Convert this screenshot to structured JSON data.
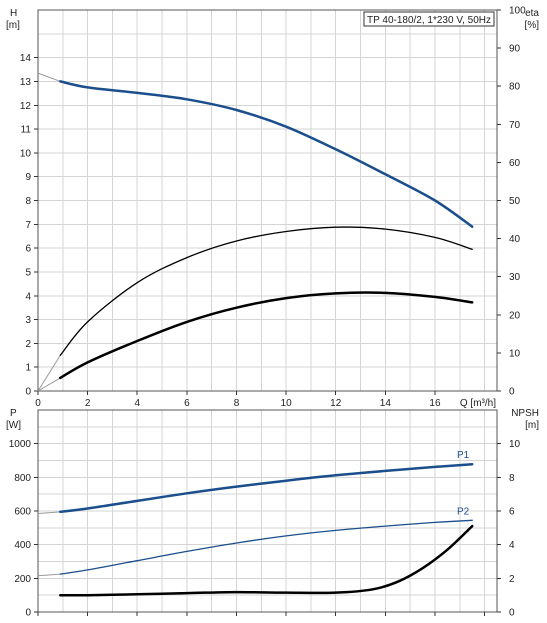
{
  "chart_data": [
    {
      "type": "line",
      "title": "TP 40-180/2, 1*230 V, 50Hz",
      "xlabel": "Q [m³/h]",
      "ylabel_left": [
        "H",
        "[m]"
      ],
      "ylabel_right": [
        "eta",
        "[%]"
      ],
      "xlim": [
        0,
        18.5
      ],
      "ylim_left": [
        0,
        16
      ],
      "ylim_right": [
        0,
        100
      ],
      "x_ticks": [
        "0",
        "2",
        "4",
        "6",
        "8",
        "10",
        "12",
        "14",
        "16"
      ],
      "y_ticks_left": [
        "0",
        "1",
        "2",
        "3",
        "4",
        "5",
        "6",
        "7",
        "8",
        "9",
        "10",
        "11",
        "12",
        "13",
        "14"
      ],
      "y_ticks_right": [
        "0",
        "10",
        "20",
        "30",
        "40",
        "50",
        "60",
        "70",
        "80",
        "90",
        "100"
      ],
      "grid": true,
      "series": [
        {
          "axis": "left",
          "color": "#1a4e8c",
          "width": 2.5,
          "x": [
            0.9,
            2,
            4,
            6,
            8,
            10,
            12,
            14,
            16,
            17.5
          ],
          "y": [
            13.0,
            12.75,
            12.52,
            12.25,
            11.8,
            11.1,
            10.15,
            9.1,
            8.0,
            6.9
          ],
          "extension": {
            "x": [
              0,
              0.9
            ],
            "y": [
              13.35,
              13.0
            ]
          }
        },
        {
          "axis": "left",
          "color": "#000000",
          "width": 1.3,
          "x": [
            0.9,
            2,
            4,
            6,
            8,
            10,
            12,
            14,
            16,
            17.5
          ],
          "y": [
            1.5,
            2.9,
            4.55,
            5.6,
            6.3,
            6.7,
            6.88,
            6.8,
            6.45,
            5.95
          ],
          "extension": {
            "x": [
              0,
              0.9
            ],
            "y": [
              0,
              1.5
            ]
          }
        },
        {
          "axis": "left",
          "color": "#000000",
          "width": 2.5,
          "x": [
            0.9,
            2,
            4,
            6,
            8,
            10,
            12,
            14,
            16,
            17.5
          ],
          "y": [
            0.55,
            1.2,
            2.1,
            2.9,
            3.5,
            3.9,
            4.1,
            4.12,
            3.95,
            3.72
          ],
          "extension": {
            "x": [
              0,
              0.9
            ],
            "y": [
              0,
              0.55
            ]
          }
        }
      ]
    },
    {
      "type": "line",
      "xlim": [
        0,
        18.5
      ],
      "ylabel_left": [
        "P",
        "[W]"
      ],
      "ylabel_right": [
        "NPSH",
        "[m]"
      ],
      "ylim_left": [
        0,
        1200
      ],
      "ylim_right": [
        0,
        12
      ],
      "y_ticks_left": [
        "0",
        "200",
        "400",
        "600",
        "800",
        "1000"
      ],
      "y_ticks_right": [
        "0",
        "2",
        "4",
        "6",
        "8",
        "10"
      ],
      "grid": true,
      "series": [
        {
          "name": "P1",
          "axis": "left",
          "color": "#1a4e8c",
          "width": 2.5,
          "x": [
            0.9,
            2,
            4,
            6,
            8,
            10,
            12,
            14,
            16,
            17.5
          ],
          "y": [
            595,
            615,
            660,
            705,
            745,
            780,
            812,
            838,
            862,
            878
          ],
          "extension": {
            "x": [
              0,
              0.9
            ],
            "y": [
              585,
              595
            ]
          }
        },
        {
          "name": "P2",
          "axis": "left",
          "color": "#1a4e8c",
          "width": 1.3,
          "x": [
            0.9,
            2,
            4,
            6,
            8,
            10,
            12,
            14,
            16,
            17.5
          ],
          "y": [
            225,
            250,
            305,
            360,
            410,
            452,
            485,
            510,
            532,
            545
          ],
          "extension": {
            "x": [
              0,
              0.9
            ],
            "y": [
              215,
              225
            ]
          }
        },
        {
          "axis": "right",
          "color": "#000000",
          "width": 2.5,
          "x": [
            0.9,
            2,
            4,
            6,
            8,
            10,
            12,
            13.5,
            14.5,
            15.5,
            16.5,
            17.5
          ],
          "y": [
            1.0,
            1.0,
            1.05,
            1.12,
            1.18,
            1.15,
            1.15,
            1.35,
            1.8,
            2.6,
            3.7,
            5.1
          ]
        }
      ]
    }
  ]
}
